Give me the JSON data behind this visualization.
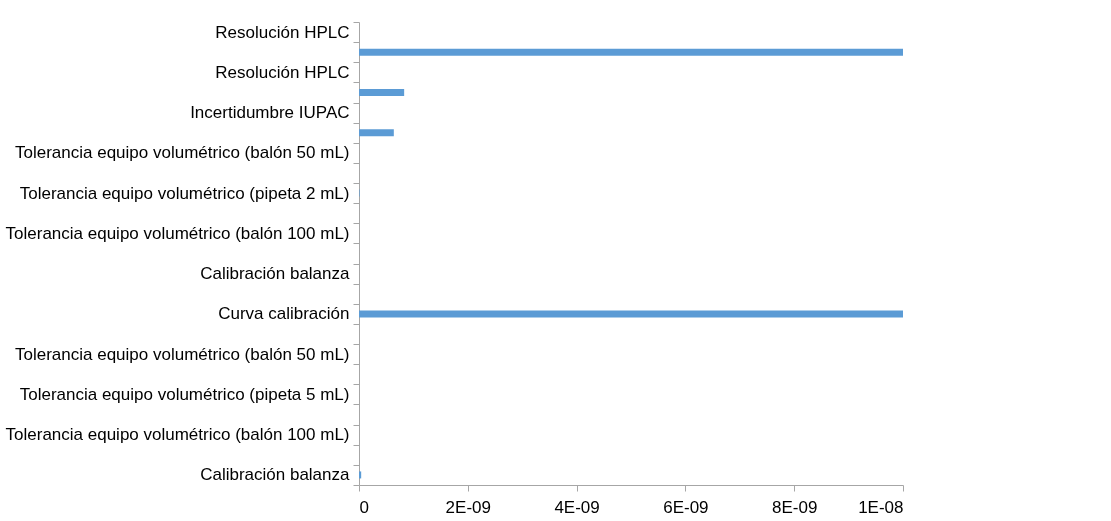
{
  "chart_data": {
    "type": "bar",
    "orientation": "horizontal",
    "color": "#5b9bd5",
    "categories": [
      "Resolución HPLC",
      null,
      "Resolución HPLC",
      null,
      "Incertidumbre IUPAC",
      null,
      "Tolerancia equipo volumétrico (balón 50 mL)",
      null,
      "Tolerancia equipo volumétrico (pipeta 2 mL)",
      null,
      "Tolerancia equipo volumétrico (balón 100 mL)",
      null,
      "Calibración balanza",
      null,
      "Curva calibración",
      null,
      "Tolerancia equipo volumétrico (balón 50 mL)",
      null,
      "Tolerancia equipo volumétrico (pipeta 5 mL)",
      null,
      "Tolerancia equipo volumétrico (balón 100 mL)",
      null,
      "Calibración balanza"
    ],
    "values": [
      0,
      1e-08,
      0,
      8.3e-10,
      0,
      6.4e-10,
      0,
      0,
      1e-11,
      0,
      0,
      0,
      0,
      0,
      1e-08,
      0,
      0,
      0,
      0,
      0,
      0,
      0,
      4e-11
    ],
    "xlim": [
      0,
      1e-08
    ],
    "xticks": [
      0,
      {
        "value": 2e-09,
        "label": "2E-09"
      },
      {
        "value": 4e-09,
        "label": "4E-09"
      },
      {
        "value": 6e-09,
        "label": "6E-09"
      },
      {
        "value": 8e-09,
        "label": "8E-09"
      },
      {
        "value": 1e-08,
        "label": "1E-08"
      }
    ],
    "grid": false
  }
}
